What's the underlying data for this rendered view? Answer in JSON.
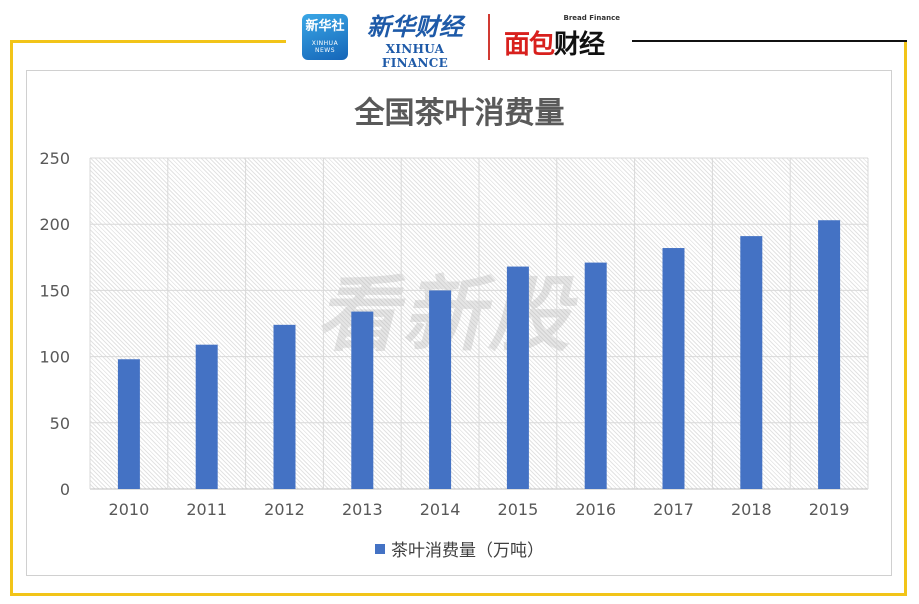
{
  "header": {
    "badge_text": "新华社",
    "badge_subtext": "XINHUA NEWS",
    "xinhua_cn": "新华财经",
    "xinhua_en": "XINHUA FINANCE",
    "bread_en": "Bread Finance",
    "bread_cn_part1": "面包",
    "bread_cn_part2": "财经"
  },
  "watermark": "看新股",
  "colors": {
    "frame": "#f2c418",
    "bar": "#4472c4",
    "title": "#595959"
  },
  "chart_data": {
    "type": "bar",
    "title": "全国茶叶消费量",
    "categories": [
      "2010",
      "2011",
      "2012",
      "2013",
      "2014",
      "2015",
      "2016",
      "2017",
      "2018",
      "2019"
    ],
    "series": [
      {
        "name": "茶叶消费量（万吨）",
        "values": [
          98,
          109,
          124,
          134,
          150,
          168,
          171,
          182,
          191,
          203
        ]
      }
    ],
    "ylim": [
      0,
      250
    ],
    "yticks": [
      0,
      50,
      100,
      150,
      200,
      250
    ],
    "grid": true,
    "legend": "bottom"
  }
}
